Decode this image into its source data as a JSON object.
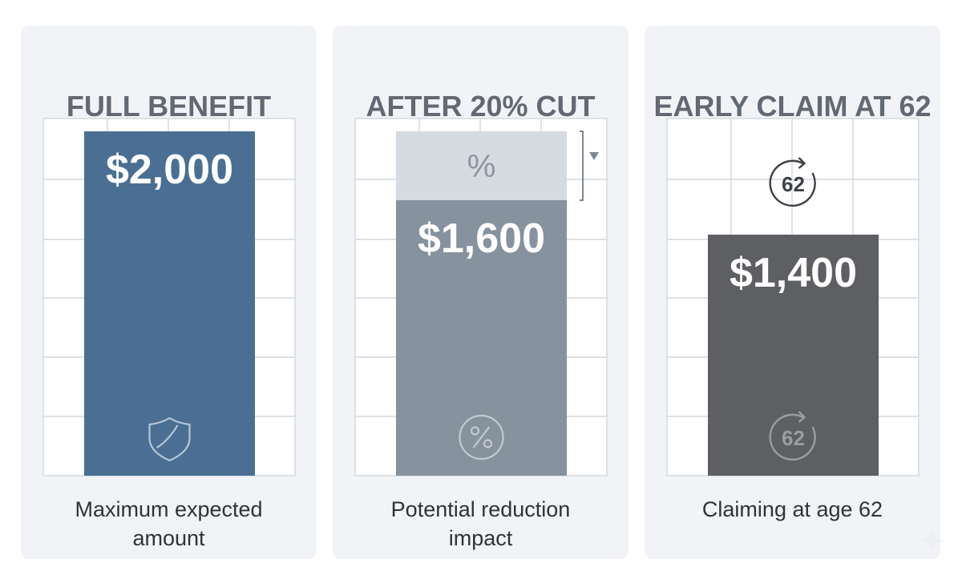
{
  "panels": [
    {
      "title": "FULL BENEFIT",
      "caption": "Maximum expected amount",
      "icon": "shield-icon",
      "color": "#4a6f93"
    },
    {
      "title": "AFTER 20% CUT",
      "caption": "Potential reduction impact",
      "icon": "percent-icon",
      "color": "#86929e",
      "reduction_color": "#d6dae1",
      "reduction_symbol": "%"
    },
    {
      "title": "EARLY CLAIM AT 62",
      "caption": "Claiming at age 62",
      "icon": "age-62-icon",
      "icon_text": "62",
      "color": "#5d5f62"
    }
  ],
  "chart_data": {
    "type": "bar",
    "categories": [
      "FULL BENEFIT",
      "AFTER 20% CUT",
      "EARLY CLAIM AT 62"
    ],
    "values": [
      2000,
      1600,
      1400
    ],
    "value_labels": [
      "$2,000",
      "$1,600",
      "$1,400"
    ],
    "cut_percent": 20,
    "claim_age": 62,
    "ylim": [
      0,
      2000
    ],
    "grid": true,
    "legend": "none"
  }
}
